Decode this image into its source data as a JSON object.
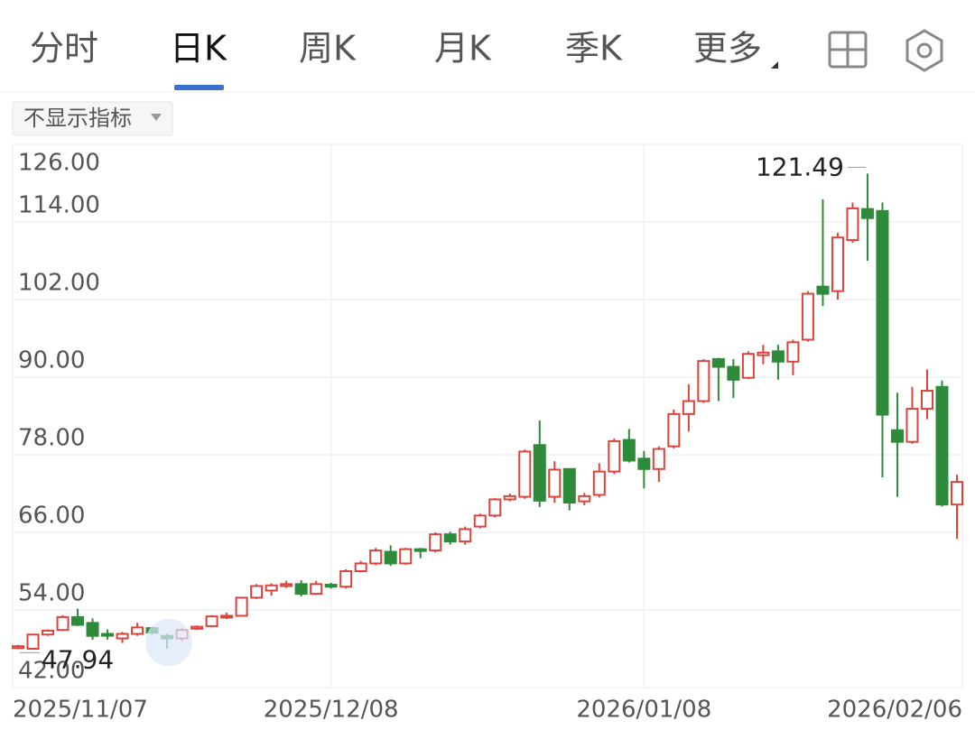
{
  "tabs": [
    "分时",
    "日K",
    "周K",
    "月K",
    "季K",
    "更多"
  ],
  "active_tab": 1,
  "indicator_button": "不显示指标",
  "chart_data": {
    "type": "candlestick",
    "categories": [
      "2025/11/07",
      null,
      null,
      null,
      null,
      null,
      null,
      null,
      null,
      null,
      null,
      null,
      null,
      null,
      null,
      null,
      null,
      null,
      null,
      null,
      null,
      "2025/12/08",
      null,
      null,
      null,
      null,
      null,
      null,
      null,
      null,
      null,
      null,
      null,
      null,
      null,
      null,
      null,
      null,
      null,
      null,
      null,
      null,
      "2026/01/08",
      null,
      null,
      null,
      null,
      null,
      null,
      null,
      null,
      null,
      null,
      null,
      null,
      null,
      null,
      null,
      null,
      null,
      null,
      null,
      null,
      "2026/02/06"
    ],
    "open": [
      48.1,
      48.0,
      50.2,
      50.9,
      52.9,
      52.0,
      50.3,
      49.6,
      50.3,
      51.2,
      50.0,
      49.6,
      51.1,
      51.5,
      52.9,
      53.1,
      55.9,
      57.0,
      57.7,
      58.0,
      56.5,
      57.9,
      57.6,
      60.0,
      61.2,
      63.0,
      61.2,
      63.4,
      63.2,
      65.7,
      64.6,
      66.9,
      68.6,
      71.1,
      71.5,
      79.5,
      71.5,
      75.8,
      70.8,
      71.8,
      75.4,
      80.3,
      77.4,
      75.8,
      79.3,
      84.3,
      86.3,
      92.8,
      91.6,
      89.9,
      93.4,
      94.0,
      92.4,
      95.8,
      104.0,
      103.3,
      111.2,
      116.0,
      115.7,
      81.8,
      80.0,
      85.1,
      88.5,
      70.3
    ],
    "high": [
      48.6,
      50.3,
      51.0,
      53.2,
      54.2,
      52.7,
      51.0,
      50.6,
      52.0,
      51.4,
      50.3,
      51.2,
      51.6,
      53.2,
      53.6,
      56.0,
      58.0,
      58.1,
      58.5,
      58.6,
      58.5,
      58.2,
      60.3,
      61.6,
      63.6,
      64.0,
      63.6,
      63.6,
      66.0,
      66.1,
      66.9,
      68.9,
      71.3,
      72.0,
      78.8,
      83.3,
      77.0,
      75.9,
      72.1,
      76.7,
      80.5,
      82.0,
      78.6,
      79.3,
      85.0,
      88.9,
      92.8,
      93.0,
      92.8,
      94.0,
      95.0,
      95.0,
      95.8,
      103.3,
      117.5,
      112.3,
      117.0,
      121.49,
      117.0,
      87.6,
      88.5,
      91.2,
      89.5,
      74.9
    ],
    "low": [
      47.94,
      48.0,
      50.0,
      50.8,
      51.5,
      49.4,
      49.4,
      48.9,
      50.0,
      50.2,
      48.0,
      49.2,
      50.9,
      51.4,
      52.6,
      53.0,
      55.7,
      56.2,
      57.4,
      56.1,
      56.3,
      57.3,
      57.3,
      59.8,
      60.9,
      60.8,
      61.0,
      62.0,
      62.9,
      64.1,
      64.1,
      66.6,
      68.3,
      70.8,
      71.2,
      69.9,
      70.6,
      69.4,
      70.2,
      71.4,
      75.0,
      76.8,
      72.8,
      73.8,
      79.0,
      81.6,
      86.0,
      86.3,
      86.8,
      89.7,
      92.0,
      89.6,
      90.3,
      95.5,
      101.0,
      102.0,
      110.8,
      108.0,
      74.5,
      71.5,
      79.7,
      83.5,
      70.0,
      65.0
    ],
    "close": [
      48.4,
      50.2,
      50.8,
      52.9,
      51.7,
      50.0,
      50.1,
      50.3,
      51.3,
      50.5,
      49.6,
      50.9,
      51.4,
      53.0,
      53.1,
      55.9,
      57.7,
      57.8,
      58.0,
      56.5,
      58.0,
      57.6,
      60.0,
      61.2,
      63.2,
      61.2,
      63.4,
      63.2,
      65.7,
      64.6,
      66.5,
      68.6,
      71.1,
      71.6,
      78.5,
      70.9,
      75.7,
      70.6,
      71.6,
      75.4,
      80.1,
      77.1,
      75.8,
      78.9,
      84.3,
      86.3,
      92.5,
      91.6,
      89.6,
      93.6,
      93.8,
      92.4,
      95.4,
      102.9,
      102.9,
      111.6,
      116.1,
      114.6,
      84.2,
      80.0,
      85.1,
      87.9,
      70.3,
      73.8
    ],
    "up_color": "#d9453c",
    "down_color": "#2e8b3a",
    "ylim": [
      42,
      126
    ],
    "yticks": [
      {
        "value": 42,
        "label": "42.00"
      },
      {
        "value": 54,
        "label": "54.00"
      },
      {
        "value": 66,
        "label": "66.00"
      },
      {
        "value": 78,
        "label": "78.00"
      },
      {
        "value": 90,
        "label": "90.00"
      },
      {
        "value": 102,
        "label": "102.00"
      },
      {
        "value": 114,
        "label": "114.00"
      },
      {
        "value": 126,
        "label": "126.00"
      }
    ],
    "grid": true,
    "max_index": 57,
    "min_index": 0
  }
}
